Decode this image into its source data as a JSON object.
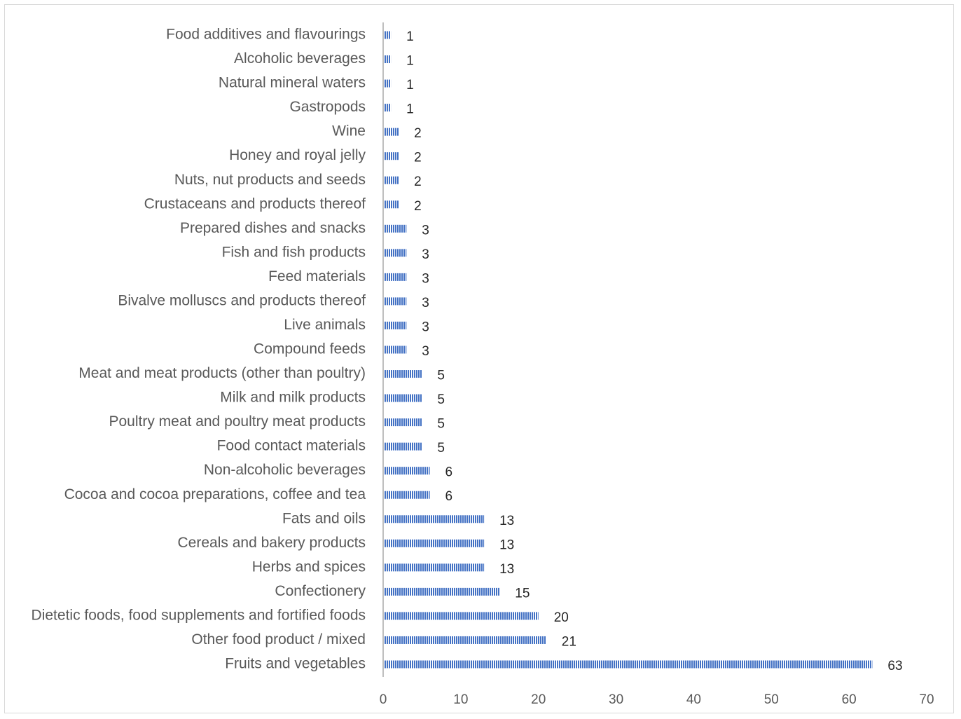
{
  "chart_data": {
    "type": "bar",
    "orientation": "horizontal",
    "categories": [
      "Food additives and flavourings",
      "Alcoholic beverages",
      "Natural mineral waters",
      "Gastropods",
      "Wine",
      "Honey and royal jelly",
      "Nuts, nut products and seeds",
      "Crustaceans and products thereof",
      "Prepared dishes and snacks",
      "Fish and fish products",
      "Feed materials",
      "Bivalve molluscs and products thereof",
      "Live animals",
      "Compound feeds",
      "Meat and meat products (other than poultry)",
      "Milk and milk products",
      "Poultry meat and poultry meat products",
      "Food contact materials",
      "Non-alcoholic beverages",
      "Cocoa and cocoa preparations, coffee and tea",
      "Fats and oils",
      "Cereals and bakery products",
      "Herbs and spices",
      "Confectionery",
      "Dietetic foods, food supplements and fortified foods",
      "Other food product / mixed",
      "Fruits and vegetables"
    ],
    "values": [
      1,
      1,
      1,
      1,
      2,
      2,
      2,
      2,
      3,
      3,
      3,
      3,
      3,
      3,
      5,
      5,
      5,
      5,
      6,
      6,
      13,
      13,
      13,
      15,
      20,
      21,
      63
    ],
    "xlim": [
      0,
      70
    ],
    "xticks": [
      0,
      10,
      20,
      30,
      40,
      50,
      60,
      70
    ],
    "title": "",
    "xlabel": "",
    "ylabel": "",
    "grid": false,
    "legend": "none",
    "bar_color": "#4472c4",
    "data_labels": true
  }
}
